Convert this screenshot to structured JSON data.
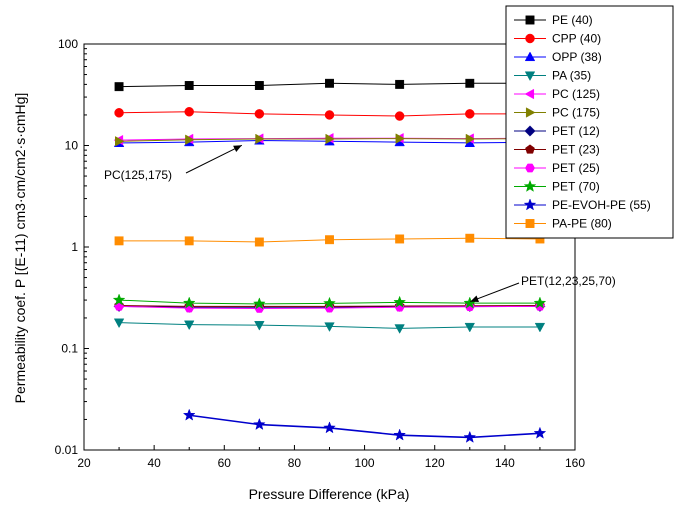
{
  "chart_data": {
    "type": "line",
    "title": "",
    "xlabel": "Pressure Difference (kPa)",
    "ylabel": "Permeability coef. P [(E-11) cm3·cm/cm2·s·cmHg]",
    "xlim": [
      20,
      160
    ],
    "ylim": [
      0.01,
      100
    ],
    "yscale": "log",
    "x_ticks": [
      20,
      40,
      60,
      80,
      100,
      120,
      140,
      160
    ],
    "y_ticks": [
      0.01,
      0.1,
      1,
      10,
      100
    ],
    "y_tick_labels": [
      "0.01",
      "0.1",
      "1",
      "10",
      "100"
    ],
    "legend_position": "top-right",
    "grid": false,
    "series": [
      {
        "name": "PE (40)",
        "color": "#000000",
        "marker": "square",
        "x": [
          30,
          50,
          70,
          90,
          110,
          130,
          150
        ],
        "y": [
          38,
          39,
          39,
          41,
          40,
          41,
          41
        ]
      },
      {
        "name": "CPP (40)",
        "color": "#ff0000",
        "marker": "circle",
        "x": [
          30,
          50,
          70,
          90,
          110,
          130,
          150
        ],
        "y": [
          21,
          21.5,
          20.5,
          20,
          19.5,
          20.5,
          20.5
        ]
      },
      {
        "name": "OPP (38)",
        "color": "#0000ff",
        "marker": "triangle-up",
        "x": [
          30,
          50,
          70,
          90,
          110,
          130,
          150
        ],
        "y": [
          10.6,
          10.8,
          11.2,
          11,
          10.8,
          10.6,
          10.8
        ]
      },
      {
        "name": "PA (35)",
        "color": "#008080",
        "marker": "triangle-down",
        "x": [
          30,
          50,
          70,
          90,
          110,
          130,
          150
        ],
        "y": [
          0.18,
          0.172,
          0.17,
          0.165,
          0.158,
          0.163,
          0.163
        ]
      },
      {
        "name": "PC (125)",
        "color": "#ff00ff",
        "marker": "triangle-left",
        "x": [
          30,
          50,
          70,
          90,
          110,
          130,
          150
        ],
        "y": [
          11.3,
          11.6,
          11.7,
          11.8,
          11.8,
          11.7,
          11.8
        ]
      },
      {
        "name": "PC (175)",
        "color": "#808000",
        "marker": "triangle-right",
        "x": [
          30,
          50,
          70,
          90,
          110,
          130,
          150
        ],
        "y": [
          11.0,
          11.4,
          11.6,
          11.6,
          11.7,
          11.6,
          11.7
        ]
      },
      {
        "name": "PET (12)",
        "color": "#000080",
        "marker": "diamond",
        "x": [
          30,
          50,
          70,
          90,
          110,
          130,
          150
        ],
        "y": [
          0.26,
          0.255,
          0.255,
          0.255,
          0.26,
          0.26,
          0.26
        ]
      },
      {
        "name": "PET (23)",
        "color": "#800000",
        "marker": "pentagon",
        "x": [
          30,
          50,
          70,
          90,
          110,
          130,
          150
        ],
        "y": [
          0.265,
          0.26,
          0.26,
          0.26,
          0.262,
          0.264,
          0.265
        ]
      },
      {
        "name": "PET (25)",
        "color": "#ff00ff",
        "marker": "hexagon",
        "x": [
          30,
          50,
          70,
          90,
          110,
          130,
          150
        ],
        "y": [
          0.26,
          0.25,
          0.248,
          0.25,
          0.255,
          0.258,
          0.26
        ]
      },
      {
        "name": "PET (70)",
        "color": "#00aa00",
        "marker": "star",
        "x": [
          30,
          50,
          70,
          90,
          110,
          130,
          150
        ],
        "y": [
          0.3,
          0.28,
          0.275,
          0.278,
          0.285,
          0.28,
          0.28
        ]
      },
      {
        "name": "PE-EVOH-PE (55)",
        "color": "#0000cc",
        "marker": "star",
        "x": [
          50,
          70,
          90,
          110,
          130,
          150
        ],
        "y": [
          0.022,
          0.0178,
          0.0165,
          0.014,
          0.0133,
          0.0146
        ]
      },
      {
        "name": "PA-PE (80)",
        "color": "#ff8c00",
        "marker": "square",
        "x": [
          30,
          50,
          70,
          90,
          110,
          130,
          150
        ],
        "y": [
          1.15,
          1.15,
          1.12,
          1.18,
          1.2,
          1.22,
          1.2
        ]
      }
    ],
    "annotations": [
      {
        "text": "PC(125,175)",
        "arrow_to": [
          65,
          11.0
        ]
      },
      {
        "text": "PET(12,23,25,70)",
        "arrow_to": [
          129,
          0.29
        ]
      }
    ]
  }
}
